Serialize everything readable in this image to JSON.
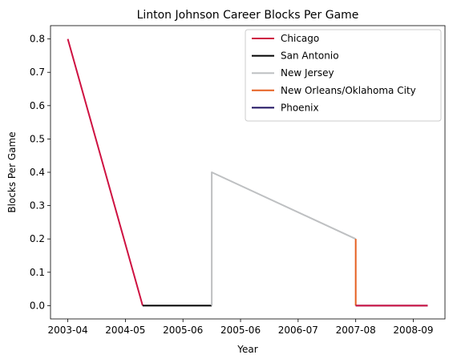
{
  "chart_data": {
    "type": "line",
    "title": "Linton Johnson Career Blocks Per Game",
    "xlabel": "Year",
    "ylabel": "Blocks Per Game",
    "x_tick_labels": [
      "2003-04",
      "2004-05",
      "2005-06",
      "2005-06",
      "2006-07",
      "2007-08",
      "2008-09"
    ],
    "ylim": [
      -0.04,
      0.84
    ],
    "y_ticks": [
      "0.0",
      "0.1",
      "0.2",
      "0.3",
      "0.4",
      "0.5",
      "0.6",
      "0.7",
      "0.8"
    ],
    "grid": false,
    "legend_position": "top-right",
    "series": [
      {
        "name": "Chicago",
        "color": "#CE1141",
        "points": [
          {
            "x": 0,
            "y": 0.8
          },
          {
            "x": 1.3,
            "y": 0.0
          }
        ]
      },
      {
        "name": "San Antonio",
        "color": "#000000",
        "points": [
          {
            "x": 1.3,
            "y": 0.0
          },
          {
            "x": 2.5,
            "y": 0.0
          }
        ]
      },
      {
        "name": "New Jersey",
        "color": "#BEC0C2",
        "points": [
          {
            "x": 2.5,
            "y": 0.0
          },
          {
            "x": 2.5,
            "y": 0.4
          },
          {
            "x": 5.0,
            "y": 0.2
          }
        ]
      },
      {
        "name": "New Orleans/Oklahoma City",
        "color": "#E56020",
        "points": [
          {
            "x": 5.0,
            "y": 0.2
          },
          {
            "x": 5.0,
            "y": 0.0
          }
        ]
      },
      {
        "name": "Phoenix",
        "color": "#1D1160",
        "points": [
          {
            "x": 5.0,
            "y": 0.0
          },
          {
            "x": 6.25,
            "y": 0.0
          }
        ]
      },
      {
        "name": "Chicago",
        "color": "#CE1141",
        "points": [
          {
            "x": 5.0,
            "y": 0.0
          },
          {
            "x": 6.25,
            "y": 0.0
          }
        ],
        "legend": false
      }
    ]
  }
}
